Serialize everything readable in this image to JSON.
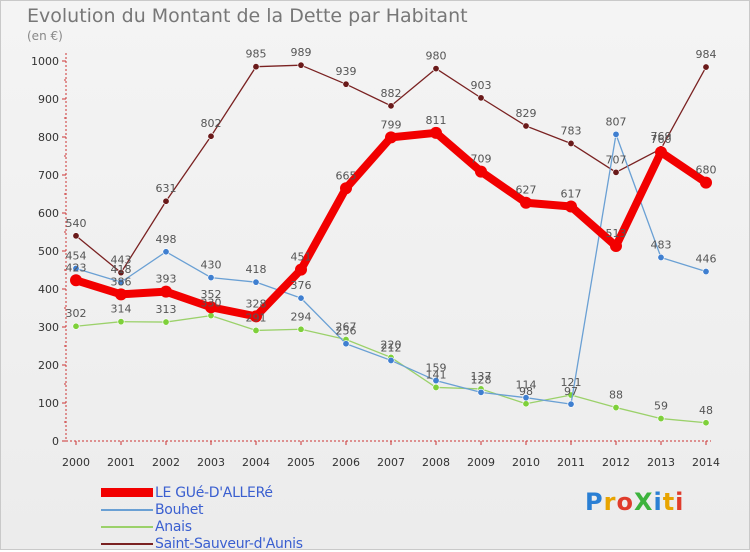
{
  "header": {
    "title": "Evolution du Montant de la Dette par Habitant",
    "subtitle": "(en €)"
  },
  "logo": {
    "text": "ProXiti",
    "colors": [
      "#2a7fd4",
      "#e8a400",
      "#e03c2c",
      "#3db33d",
      "#2a7fd4",
      "#e8a400",
      "#e03c2c"
    ]
  },
  "chart_data": {
    "type": "line",
    "title": "Evolution du Montant de la Dette par Habitant",
    "ylabel": "(en €)",
    "xlabel": "",
    "ylim": [
      0,
      1000
    ],
    "yticks": [
      0,
      100,
      200,
      300,
      400,
      500,
      600,
      700,
      800,
      900,
      1000
    ],
    "categories": [
      "2000",
      "2001",
      "2002",
      "2003",
      "2004",
      "2005",
      "2006",
      "2007",
      "2008",
      "2009",
      "2010",
      "2011",
      "2012",
      "2013",
      "2014"
    ],
    "series": [
      {
        "name": "Saint-Sauveur-d'Aunis",
        "color": "#7a2222",
        "marker": "#6a1a1a",
        "values": [
          540,
          443,
          631,
          802,
          985,
          989,
          939,
          882,
          980,
          903,
          829,
          783,
          707,
          769,
          984
        ],
        "labels": [
          "540",
          "443",
          "631",
          "802",
          "985",
          "989",
          "939",
          "882",
          "980",
          "903",
          "829",
          "783",
          "707",
          "769",
          "984"
        ]
      },
      {
        "name": "Anais",
        "color": "#9bd16a",
        "marker": "#7ed03a",
        "values": [
          302,
          314,
          313,
          330,
          291,
          294,
          267,
          220,
          141,
          137,
          98,
          121,
          88,
          59,
          48
        ],
        "labels": [
          "302",
          "314",
          "313",
          "330",
          "291",
          "294",
          "267",
          "220",
          "141",
          "137",
          "98",
          "121",
          "88",
          "59",
          "48"
        ]
      },
      {
        "name": "Bouhet",
        "color": "#6aa0d4",
        "marker": "#3f7fd0",
        "values": [
          454,
          418,
          498,
          430,
          418,
          376,
          256,
          212,
          159,
          128,
          114,
          97,
          807,
          483,
          446
        ],
        "labels": [
          "454",
          "418",
          "498",
          "430",
          "418",
          "376",
          "256",
          "212",
          "159",
          "128",
          "114",
          "97",
          "807",
          "483",
          "446"
        ]
      },
      {
        "name": "LE GUé-D'ALLERé",
        "color": "#f20000",
        "marker": "#f20000",
        "values": [
          423,
          386,
          393,
          352,
          328,
          451,
          665,
          799,
          811,
          709,
          627,
          617,
          513,
          760,
          680
        ],
        "labels": [
          "423",
          "386",
          "393",
          "352",
          "328",
          "451",
          "665",
          "799",
          "811",
          "709",
          "627",
          "617",
          "513",
          "760",
          "680"
        ]
      }
    ],
    "legend_order": [
      "LE GUé-D'ALLERé",
      "Bouhet",
      "Anais",
      "Saint-Sauveur-d'Aunis"
    ],
    "legend_placement": "bottom-left",
    "grid": false
  }
}
